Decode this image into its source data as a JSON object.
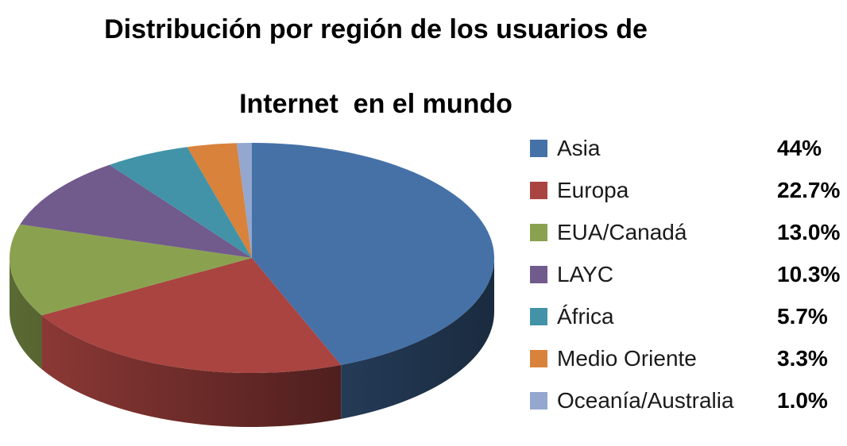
{
  "title": {
    "line1": "Distribución por región de los usuarios de",
    "line2": "Internet  en el mundo"
  },
  "chart_data": {
    "type": "pie",
    "projection": "3d",
    "title": "Distribución por región de los usuarios de Internet en el mundo",
    "start_angle_deg": 0,
    "direction": "clockwise",
    "legend_position": "right",
    "categories": [
      "Asia",
      "Europa",
      "EUA/Canadá",
      "LAYC",
      "África",
      "Medio Oriente",
      "Oceanía/Australia"
    ],
    "values": [
      44,
      22.7,
      13.0,
      10.3,
      5.7,
      3.3,
      1.0
    ],
    "slices": [
      {
        "label": "Asia",
        "value": 44,
        "pct_label": "44%",
        "color": "#4571A7"
      },
      {
        "label": "Europa",
        "value": 22.7,
        "pct_label": "22.7%",
        "color": "#A94441"
      },
      {
        "label": "EUA/Canadá",
        "value": 13.0,
        "pct_label": "13.0%",
        "color": "#8AA24F"
      },
      {
        "label": "LAYC",
        "value": 10.3,
        "pct_label": "10.3%",
        "color": "#715A8C"
      },
      {
        "label": "África",
        "value": 5.7,
        "pct_label": "5.7%",
        "color": "#4293A8"
      },
      {
        "label": "Medio Oriente",
        "value": 3.3,
        "pct_label": "3.3%",
        "color": "#D9823B"
      },
      {
        "label": "Oceanía/Australia",
        "value": 1.0,
        "pct_label": "1.0%",
        "color": "#93A7CF"
      }
    ]
  }
}
